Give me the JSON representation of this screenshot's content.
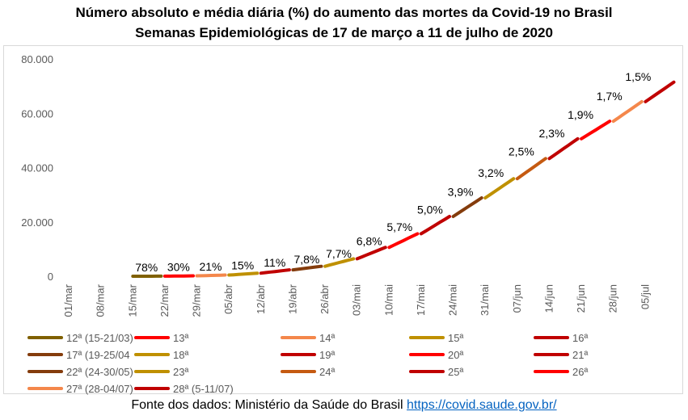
{
  "title_line1": "Número absoluto e média diária (%) do aumento das mortes da Covid-19 no Brasil",
  "title_line2": "Semanas Epidemiológicas de 17 de março a 11 de julho de 2020",
  "source_prefix": "Fonte dos dados: Ministério da Saúde do Brasil ",
  "source_link": "https://covid.saude.gov.br/",
  "chart_data": {
    "type": "line",
    "title": "Número absoluto e média diária (%) do aumento das mortes da Covid-19 no Brasil",
    "subtitle": "Semanas Epidemiológicas de 17 de março a 11 de julho de 2020",
    "ylim": [
      0,
      80000
    ],
    "yticks": [
      0,
      20000,
      40000,
      60000,
      80000
    ],
    "ytick_labels": [
      "0",
      "20.000",
      "40.000",
      "60.000",
      "80.000"
    ],
    "xlim_day": [
      0,
      133
    ],
    "xtick_days": [
      0,
      7,
      14,
      21,
      28,
      35,
      42,
      49,
      56,
      63,
      70,
      77,
      84,
      91,
      98,
      105,
      112,
      119,
      126
    ],
    "xtick_labels": [
      "01/mar",
      "08/mar",
      "15/mar",
      "22/mar",
      "29/mar",
      "05/abr",
      "12/abr",
      "19/abr",
      "26/abr",
      "03/mai",
      "10/mai",
      "17/mai",
      "24/mai",
      "31/mai",
      "07/jun",
      "14/jun",
      "21/jun",
      "28/jun",
      "05/jul"
    ],
    "grid": false,
    "legend_position": "bottom",
    "series": [
      {
        "name": "12ª (15-21/03)",
        "color": "#7f6000",
        "pct_label": "78%",
        "start": 0,
        "end": 18
      },
      {
        "name": "13ª",
        "color": "#ff0000",
        "pct_label": "30%",
        "start": 18,
        "end": 136
      },
      {
        "name": "14ª",
        "color": "#f4874b",
        "pct_label": "21%",
        "start": 136,
        "end": 432
      },
      {
        "name": "15ª",
        "color": "#bf9000",
        "pct_label": "15%",
        "start": 432,
        "end": 1124
      },
      {
        "name": "16ª",
        "color": "#c00000",
        "pct_label": "11%",
        "start": 1124,
        "end": 2347
      },
      {
        "name": "17ª (19-25/04",
        "color": "#843c0c",
        "pct_label": "7,8%",
        "start": 2347,
        "end": 3670
      },
      {
        "name": "18ª",
        "color": "#bf9000",
        "pct_label": "7,7%",
        "start": 3670,
        "end": 6412
      },
      {
        "name": "19ª",
        "color": "#c00000",
        "pct_label": "6,8%",
        "start": 6412,
        "end": 10627
      },
      {
        "name": "20ª",
        "color": "#ff0000",
        "pct_label": "5,7%",
        "start": 10627,
        "end": 15633
      },
      {
        "name": "21ª",
        "color": "#c00000",
        "pct_label": "5,0%",
        "start": 15633,
        "end": 22013
      },
      {
        "name": "22ª (24-30/05)",
        "color": "#843c0c",
        "pct_label": "3,9%",
        "start": 22013,
        "end": 28834
      },
      {
        "name": "23ª",
        "color": "#bf9000",
        "pct_label": "3,2%",
        "start": 28834,
        "end": 35930
      },
      {
        "name": "24ª",
        "color": "#c55a11",
        "pct_label": "2,5%",
        "start": 35930,
        "end": 43332
      },
      {
        "name": "25ª",
        "color": "#c00000",
        "pct_label": "2,3%",
        "start": 43332,
        "end": 50617
      },
      {
        "name": "26ª",
        "color": "#ff0000",
        "pct_label": "1,9%",
        "start": 50617,
        "end": 57070
      },
      {
        "name": "27ª (28-04/07)",
        "color": "#f4874b",
        "pct_label": "1,7%",
        "start": 57070,
        "end": 64265
      },
      {
        "name": "28ª (5-11/07)",
        "color": "#c00000",
        "pct_label": "1,5%",
        "start": 64265,
        "end": 71469
      }
    ]
  }
}
